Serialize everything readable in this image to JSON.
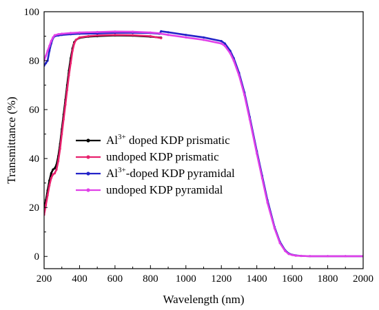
{
  "chart_data": {
    "type": "line",
    "title": "",
    "xlabel": "Wavelength (nm)",
    "ylabel": "Transmittance (%)",
    "xlim": [
      200,
      2000
    ],
    "ylim": [
      -5,
      100
    ],
    "xticks": [
      200,
      400,
      600,
      800,
      1000,
      1200,
      1400,
      1600,
      1800,
      2000
    ],
    "yticks": [
      0,
      20,
      40,
      60,
      80,
      100
    ],
    "grid": false,
    "legend_position": "center-left",
    "series": [
      {
        "name": "Al3+ doped KDP prismatic",
        "legend_parts": [
          "Al",
          "3+",
          " doped KDP prismatic"
        ],
        "color": "#000000",
        "x": [
          200,
          210,
          220,
          230,
          240,
          250,
          260,
          270,
          280,
          290,
          300,
          310,
          320,
          330,
          340,
          350,
          360,
          370,
          380,
          400,
          450,
          500,
          600,
          700,
          800,
          860
        ],
        "y": [
          19,
          23,
          27,
          31,
          34,
          35.5,
          36,
          37.5,
          41,
          46,
          52,
          58,
          64,
          70,
          76,
          81,
          85,
          87.5,
          88.5,
          89.3,
          89.8,
          90,
          90.3,
          90.2,
          89.8,
          89.4
        ]
      },
      {
        "name": "undoped KDP prismatic",
        "legend_parts": [
          "",
          "",
          "undoped KDP prismatic"
        ],
        "color": "#e8216d",
        "x": [
          200,
          210,
          220,
          230,
          240,
          250,
          260,
          270,
          280,
          290,
          300,
          310,
          320,
          330,
          340,
          350,
          360,
          370,
          380,
          400,
          450,
          500,
          600,
          700,
          800,
          860
        ],
        "y": [
          17,
          21,
          25,
          29,
          32,
          33.5,
          34,
          35.5,
          39,
          44,
          50,
          56,
          62,
          68,
          74,
          79,
          84,
          87,
          88.5,
          89.5,
          90,
          90.3,
          90.5,
          90.4,
          90,
          89.2
        ]
      },
      {
        "name": "Al3+-doped KDP pyramidal",
        "legend_parts": [
          "Al",
          "3+",
          "-doped KDP pyramidal"
        ],
        "color": "#2323c8",
        "x": [
          200,
          210,
          220,
          230,
          240,
          250,
          260,
          280,
          300,
          350,
          400,
          500,
          600,
          700,
          800,
          850,
          860,
          900,
          1000,
          1100,
          1200,
          1220,
          1250,
          1270,
          1300,
          1330,
          1360,
          1400,
          1430,
          1460,
          1500,
          1530,
          1560,
          1580,
          1600,
          1620,
          1650,
          1700,
          1800,
          1900,
          2000
        ],
        "y": [
          78,
          79,
          80,
          84,
          87,
          89.2,
          90,
          90.3,
          90.5,
          90.8,
          91,
          91.1,
          91.4,
          91.4,
          91.3,
          91,
          92,
          91.6,
          90.5,
          89.5,
          88,
          87,
          84,
          81,
          75,
          67,
          57,
          43,
          33,
          23,
          12,
          6,
          2.5,
          1.2,
          0.7,
          0.4,
          0.2,
          0.1,
          0.1,
          0.1,
          0.1
        ]
      },
      {
        "name": "undoped KDP pyramidal",
        "legend_parts": [
          "",
          "",
          "undoped KDP pyramidal"
        ],
        "color": "#e040e8",
        "x": [
          200,
          210,
          220,
          230,
          240,
          250,
          260,
          280,
          300,
          350,
          400,
          500,
          600,
          700,
          800,
          850,
          860,
          900,
          1000,
          1100,
          1200,
          1220,
          1250,
          1270,
          1300,
          1330,
          1360,
          1400,
          1430,
          1460,
          1500,
          1530,
          1560,
          1580,
          1600,
          1620,
          1650,
          1700,
          1800,
          1900,
          2000
        ],
        "y": [
          80,
          82,
          84,
          86,
          88,
          89.5,
          90.4,
          90.8,
          91,
          91.3,
          91.5,
          91.7,
          91.9,
          91.8,
          91.5,
          91.2,
          91,
          90.5,
          89.5,
          88.5,
          87,
          86,
          83,
          80,
          74,
          66,
          56,
          42,
          32,
          22,
          11.5,
          5.5,
          2.2,
          1,
          0.6,
          0.3,
          0.2,
          0.1,
          0.1,
          0.1,
          0.1
        ]
      }
    ]
  }
}
